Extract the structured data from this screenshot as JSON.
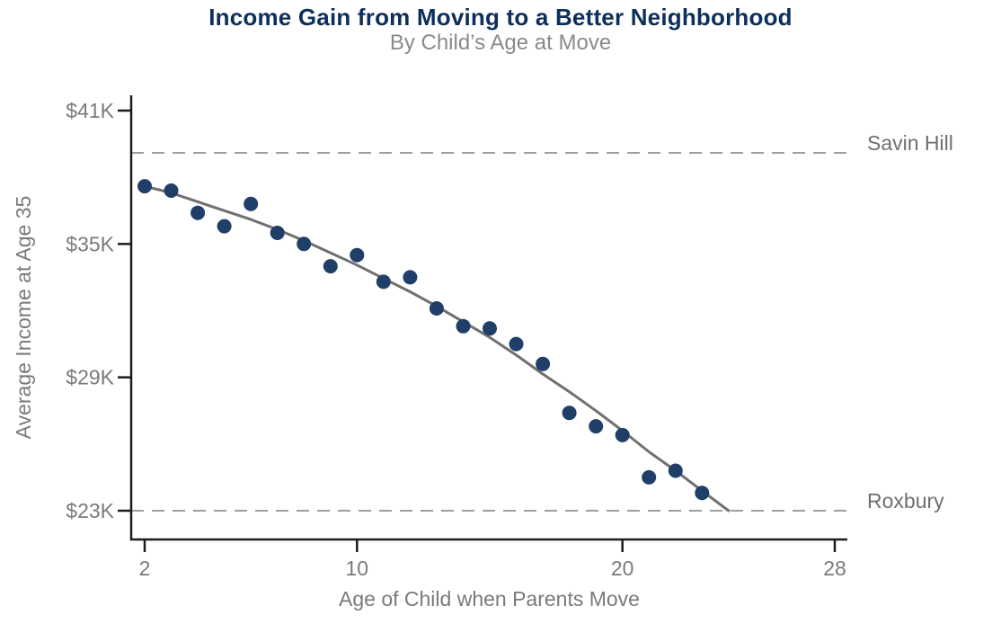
{
  "chart_data": {
    "type": "scatter",
    "title": "Income Gain from Moving to a Better Neighborhood",
    "subtitle": "By Child’s Age at Move",
    "xlabel": "Age of Child when Parents Move",
    "ylabel": "Average Income at Age 35",
    "xlim": [
      2,
      28
    ],
    "ylim": [
      21.7,
      41.7
    ],
    "grid": false,
    "legend": "none",
    "x_ticks": [
      {
        "value": 2,
        "label": "2"
      },
      {
        "value": 10,
        "label": "10"
      },
      {
        "value": 20,
        "label": "20"
      },
      {
        "value": 28,
        "label": "28"
      }
    ],
    "y_ticks": [
      {
        "value": 41,
        "label": "$41K"
      },
      {
        "value": 35,
        "label": "$35K"
      },
      {
        "value": 29,
        "label": "$29K"
      },
      {
        "value": 23,
        "label": "$23K"
      }
    ],
    "reference_lines": [
      {
        "label": "Savin Hill",
        "value_k": 39.1
      },
      {
        "label": "Roxbury",
        "value_k": 23.0
      }
    ],
    "series": [
      {
        "name": "observed-income-by-age",
        "kind": "scatter",
        "points": [
          [
            2,
            37.6
          ],
          [
            3,
            37.4
          ],
          [
            4,
            36.4
          ],
          [
            5,
            35.8
          ],
          [
            6,
            36.8
          ],
          [
            7,
            35.5
          ],
          [
            8,
            35.0
          ],
          [
            9,
            34.0
          ],
          [
            10,
            34.5
          ],
          [
            11,
            33.3
          ],
          [
            12,
            33.5
          ],
          [
            13,
            32.1
          ],
          [
            14,
            31.3
          ],
          [
            15,
            31.2
          ],
          [
            16,
            30.5
          ],
          [
            17,
            29.6
          ],
          [
            18,
            27.4
          ],
          [
            19,
            26.8
          ],
          [
            20,
            26.4
          ],
          [
            21,
            24.5
          ],
          [
            22,
            24.8
          ],
          [
            23,
            23.8
          ]
        ]
      },
      {
        "name": "fitted-trend",
        "kind": "line",
        "points": [
          [
            2,
            37.6
          ],
          [
            3,
            37.3
          ],
          [
            4,
            36.9
          ],
          [
            5,
            36.5
          ],
          [
            6,
            36.1
          ],
          [
            7,
            35.65
          ],
          [
            8,
            35.15
          ],
          [
            9,
            34.6
          ],
          [
            10,
            34.05
          ],
          [
            11,
            33.45
          ],
          [
            12,
            32.85
          ],
          [
            13,
            32.2
          ],
          [
            14,
            31.5
          ],
          [
            15,
            30.8
          ],
          [
            16,
            30.0
          ],
          [
            17,
            29.15
          ],
          [
            18,
            28.35
          ],
          [
            19,
            27.5
          ],
          [
            20,
            26.6
          ],
          [
            21,
            25.65
          ],
          [
            22,
            24.8
          ],
          [
            23,
            23.9
          ],
          [
            24,
            23.0
          ]
        ]
      }
    ],
    "colors": {
      "title": "#0d2f5c",
      "subtitle": "#8a8a8a",
      "point": "#1f3f68",
      "trend": "#707070",
      "reference_line": "#9e9e9e",
      "reference_label": "#6f6f6f",
      "axis": "#1c1c1c",
      "tick_label": "#7a7a7a",
      "axis_label": "#7a7a7a"
    }
  }
}
